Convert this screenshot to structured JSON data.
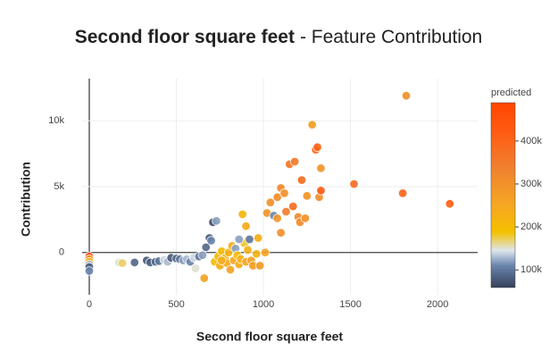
{
  "chart_data": {
    "type": "scatter",
    "title": "Second floor square feet",
    "subtitle": "- Feature Contribution",
    "x_label": "Second floor square feet",
    "y_label": "Contribution",
    "xlim": [
      -41,
      2230
    ],
    "ylim": [
      -3200,
      13200
    ],
    "xticks": [
      0,
      500,
      1000,
      1500,
      2000
    ],
    "yticks": [
      0,
      {
        "value": 5000,
        "label": "5k"
      },
      {
        "value": 10000,
        "label": "10k"
      }
    ],
    "grid": true,
    "colorbar_title": "predicted",
    "clim": [
      59000,
      489000
    ],
    "cticks": [
      {
        "value": 100000,
        "label": "100k"
      },
      {
        "value": 200000,
        "label": "200k"
      },
      {
        "value": 300000,
        "label": "300k"
      },
      {
        "value": 400000,
        "label": "400k"
      }
    ],
    "colorscale": [
      [
        0,
        "#34405a"
      ],
      [
        0.12,
        "#6c86ad"
      ],
      [
        0.2,
        "#dde6ef"
      ],
      [
        0.3,
        "#f5c000"
      ],
      [
        0.45,
        "#f5a623"
      ],
      [
        0.65,
        "#f08030"
      ],
      [
        0.85,
        "#ff5a10"
      ],
      [
        1,
        "#ff4500"
      ]
    ],
    "x": [
      0,
      0,
      0,
      0,
      0,
      0,
      170,
      190,
      260,
      330,
      350,
      380,
      400,
      430,
      450,
      470,
      500,
      520,
      540,
      560,
      580,
      600,
      610,
      630,
      650,
      660,
      670,
      690,
      700,
      710,
      730,
      720,
      740,
      750,
      760,
      780,
      790,
      800,
      810,
      820,
      830,
      840,
      850,
      860,
      870,
      880,
      890,
      900,
      910,
      920,
      930,
      940,
      960,
      980,
      1010,
      1020,
      1040,
      1060,
      1080,
      1080,
      1100,
      1100,
      1120,
      1130,
      1150,
      1170,
      1180,
      1200,
      1210,
      1220,
      1240,
      1250,
      1280,
      1300,
      1310,
      1320,
      1330,
      1330,
      1520,
      1800,
      1820,
      2070,
      900,
      970,
      760,
      860
    ],
    "y": [
      -300,
      -500,
      -700,
      -900,
      -1100,
      -1400,
      -750,
      -800,
      -750,
      -600,
      -750,
      -700,
      -650,
      -550,
      -700,
      -400,
      -450,
      -500,
      -600,
      -500,
      -700,
      -400,
      -1200,
      -300,
      -200,
      -1950,
      400,
      1100,
      900,
      2300,
      2400,
      -700,
      -300,
      -1000,
      100,
      -400,
      -800,
      0,
      -1300,
      500,
      -600,
      300,
      -200,
      -900,
      -500,
      2900,
      700,
      -700,
      200,
      1000,
      -600,
      -1000,
      -100,
      -1000,
      0,
      3000,
      3800,
      2800,
      2600,
      4200,
      1500,
      4900,
      4500,
      3100,
      6700,
      3500,
      6900,
      2700,
      2300,
      5500,
      2600,
      4300,
      9700,
      7800,
      8000,
      4200,
      6400,
      4700,
      5200,
      4500,
      11900,
      3700,
      2000,
      1100,
      -600,
      1000
    ],
    "predicted": [
      480000,
      300000,
      220000,
      130000,
      80000,
      110000,
      150000,
      170000,
      90000,
      80000,
      85000,
      90000,
      100000,
      140000,
      130000,
      80000,
      90000,
      100000,
      120000,
      130000,
      110000,
      140000,
      150000,
      100000,
      120000,
      260000,
      90000,
      80000,
      110000,
      70000,
      120000,
      200000,
      210000,
      230000,
      200000,
      220000,
      240000,
      220000,
      260000,
      230000,
      250000,
      120000,
      200000,
      240000,
      230000,
      210000,
      180000,
      250000,
      230000,
      100000,
      260000,
      270000,
      220000,
      280000,
      260000,
      290000,
      300000,
      110000,
      290000,
      310000,
      300000,
      320000,
      300000,
      340000,
      360000,
      380000,
      350000,
      310000,
      310000,
      380000,
      300000,
      290000,
      270000,
      380000,
      400000,
      310000,
      290000,
      420000,
      380000,
      400000,
      300000,
      410000,
      240000,
      230000,
      240000,
      120000
    ]
  }
}
